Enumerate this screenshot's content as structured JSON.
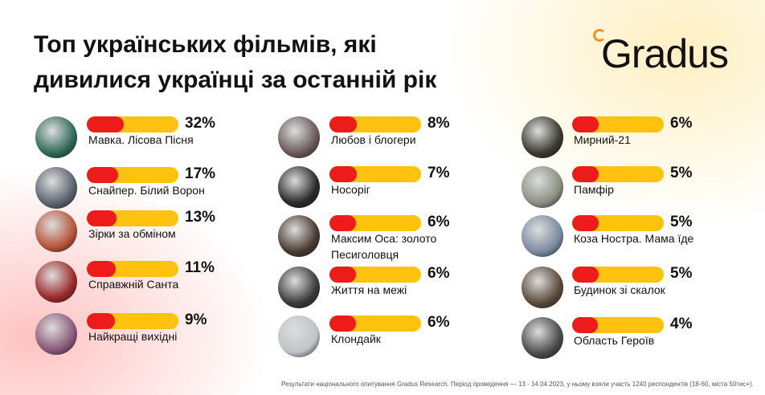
{
  "chart_data": {
    "type": "bar",
    "title": "Топ українських фільмів, які дивилися українці за останній рік",
    "brand": "Gradus",
    "note": "Результати національного опитування Gradus Research. Період проведення — 13 - 14.04.2023, у ньому взяли участь 1240 респондентів (18-60, міста 50тис+).",
    "categories": [
      "Мавка. Лісова Пісня",
      "Снайпер. Білий Ворон",
      "Зірки за обміном",
      "Справжній Санта",
      "Найкращі вихідні",
      "Любов і блогери",
      "Носоріг",
      "Максим Оса: золото Песиголовця",
      "Життя на межі",
      "Клондайк",
      "Мирний-21",
      "Памфір",
      "Коза Ностра. Мама їде",
      "Будинок зі скалок",
      "Область Героїв"
    ],
    "values": [
      32,
      17,
      13,
      11,
      9,
      8,
      7,
      6,
      6,
      6,
      6,
      5,
      5,
      5,
      4
    ],
    "value_labels": [
      "32%",
      "17%",
      "13%",
      "11%",
      "9%",
      "8%",
      "7%",
      "6%",
      "6%",
      "6%",
      "6%",
      "5%",
      "5%",
      "5%",
      "4%"
    ],
    "color": "#ee1b1b",
    "track_color": "#ffc20e"
  }
}
